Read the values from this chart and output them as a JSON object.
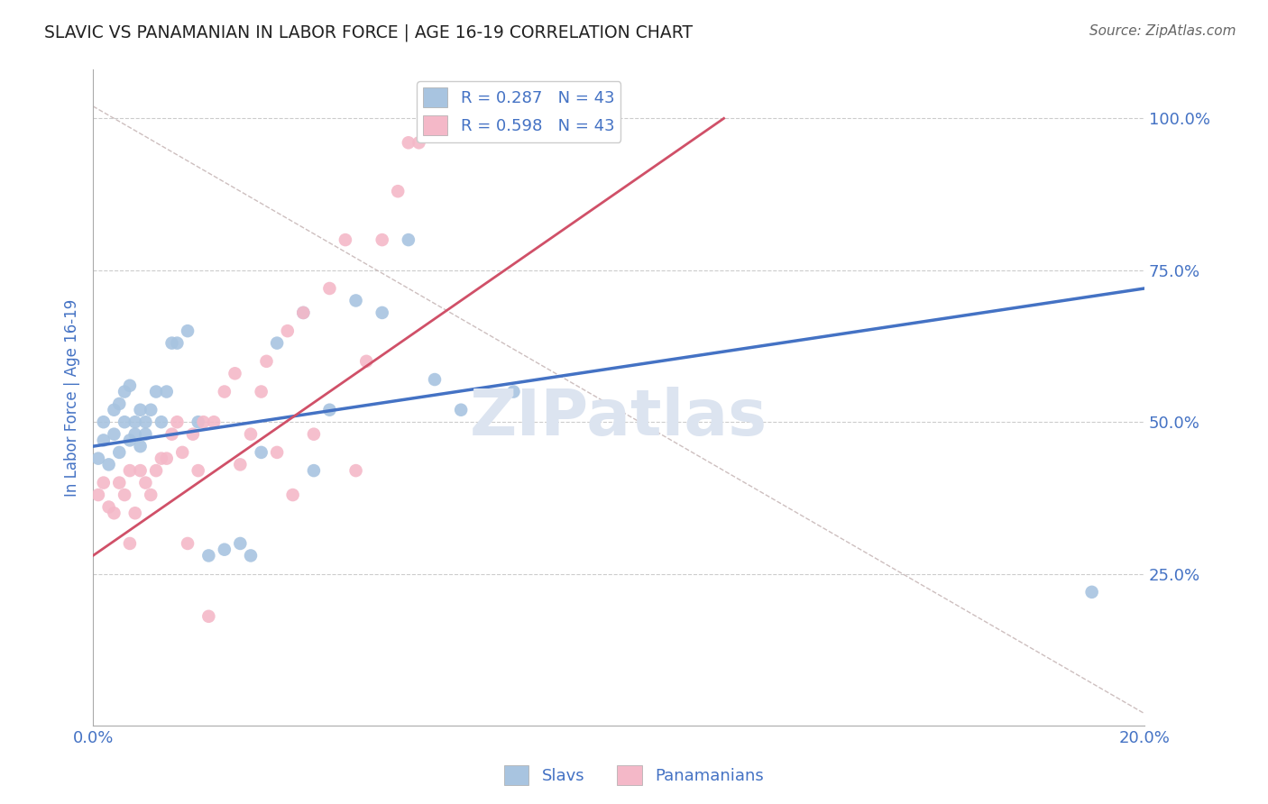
{
  "title": "SLAVIC VS PANAMANIAN IN LABOR FORCE | AGE 16-19 CORRELATION CHART",
  "source_text": "Source: ZipAtlas.com",
  "ylabel": "In Labor Force | Age 16-19",
  "xlim": [
    0.0,
    0.2
  ],
  "ylim": [
    0.0,
    1.08
  ],
  "r_slavs": 0.287,
  "r_panamanians": 0.598,
  "n_slavs": 43,
  "n_panamanians": 43,
  "slavs_color": "#a8c4e0",
  "panamanians_color": "#f4b8c8",
  "slavs_line_color": "#4472c4",
  "panamanians_line_color": "#d05068",
  "diag_line_color": "#c8b8b8",
  "legend_r_color": "#4472c4",
  "watermark_color": "#dce4f0",
  "slavs_x": [
    0.001,
    0.002,
    0.002,
    0.003,
    0.004,
    0.004,
    0.005,
    0.005,
    0.006,
    0.006,
    0.007,
    0.007,
    0.008,
    0.008,
    0.009,
    0.009,
    0.01,
    0.01,
    0.011,
    0.012,
    0.013,
    0.014,
    0.015,
    0.016,
    0.018,
    0.02,
    0.022,
    0.025,
    0.028,
    0.03,
    0.032,
    0.035,
    0.04,
    0.042,
    0.045,
    0.05,
    0.055,
    0.06,
    0.065,
    0.07,
    0.08,
    0.095,
    0.19
  ],
  "slavs_y": [
    0.44,
    0.47,
    0.5,
    0.43,
    0.48,
    0.52,
    0.45,
    0.53,
    0.5,
    0.55,
    0.47,
    0.56,
    0.5,
    0.48,
    0.52,
    0.46,
    0.5,
    0.48,
    0.52,
    0.55,
    0.5,
    0.55,
    0.63,
    0.63,
    0.65,
    0.5,
    0.28,
    0.29,
    0.3,
    0.28,
    0.45,
    0.63,
    0.68,
    0.42,
    0.52,
    0.7,
    0.68,
    0.8,
    0.57,
    0.52,
    0.55,
    0.98,
    0.22
  ],
  "panamanians_x": [
    0.001,
    0.002,
    0.003,
    0.004,
    0.005,
    0.006,
    0.007,
    0.007,
    0.008,
    0.009,
    0.01,
    0.011,
    0.012,
    0.013,
    0.014,
    0.015,
    0.016,
    0.017,
    0.018,
    0.019,
    0.02,
    0.021,
    0.022,
    0.023,
    0.025,
    0.027,
    0.028,
    0.03,
    0.032,
    0.033,
    0.035,
    0.037,
    0.038,
    0.04,
    0.042,
    0.045,
    0.048,
    0.05,
    0.052,
    0.055,
    0.058,
    0.06,
    0.062
  ],
  "panamanians_y": [
    0.38,
    0.4,
    0.36,
    0.35,
    0.4,
    0.38,
    0.3,
    0.42,
    0.35,
    0.42,
    0.4,
    0.38,
    0.42,
    0.44,
    0.44,
    0.48,
    0.5,
    0.45,
    0.3,
    0.48,
    0.42,
    0.5,
    0.18,
    0.5,
    0.55,
    0.58,
    0.43,
    0.48,
    0.55,
    0.6,
    0.45,
    0.65,
    0.38,
    0.68,
    0.48,
    0.72,
    0.8,
    0.42,
    0.6,
    0.8,
    0.88,
    0.96,
    0.96
  ],
  "background_color": "#ffffff",
  "grid_color": "#cccccc",
  "title_color": "#222222",
  "axis_label_color": "#4472c4",
  "tick_color": "#4472c4",
  "slavs_line_intercept": 0.46,
  "slavs_line_slope": 1.3,
  "panamanians_line_intercept": 0.28,
  "panamanians_line_slope": 6.0
}
